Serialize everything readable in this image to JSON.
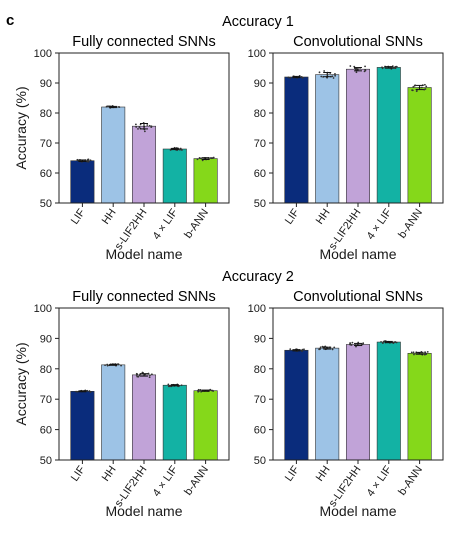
{
  "panel_label": "c",
  "colors": {
    "LIF": "#0a2c7c",
    "HH": "#9dc3e6",
    "s-LIF2HH": "#c1a3d8",
    "4 × LIF": "#13b2a4",
    "b-ANN": "#85d81a"
  },
  "groups": [
    {
      "title": "Accuracy 1",
      "charts": [
        {
          "title": "Fully connected SNNs",
          "xlabel": "Model name",
          "ylabel": "Accuracy (%)",
          "ylim": [
            50,
            100
          ],
          "yticks": [
            "50",
            "60",
            "70",
            "80",
            "90",
            "100"
          ],
          "categories": [
            "LIF",
            "HH",
            "s-LIF2HH",
            "4 × LIF",
            "b-ANN"
          ],
          "values": [
            64.1,
            82.0,
            75.6,
            68.0,
            64.8
          ],
          "spread": [
            0.5,
            0.4,
            1.8,
            0.4,
            0.6
          ]
        },
        {
          "title": "Convolutional SNNs",
          "xlabel": "Model name",
          "ylabel": "",
          "ylim": [
            50,
            100
          ],
          "yticks": [
            "50",
            "60",
            "70",
            "80",
            "90",
            "100"
          ],
          "categories": [
            "LIF",
            "HH",
            "s-LIF2HH",
            "4 × LIF",
            "b-ANN"
          ],
          "values": [
            92.0,
            92.8,
            94.6,
            95.2,
            88.5
          ],
          "spread": [
            0.4,
            1.4,
            1.1,
            0.5,
            1.4
          ]
        }
      ]
    },
    {
      "title": "Accuracy 2",
      "charts": [
        {
          "title": "Fully connected SNNs",
          "xlabel": "Model name",
          "ylabel": "Accuracy (%)",
          "ylim": [
            50,
            100
          ],
          "yticks": [
            "50",
            "60",
            "70",
            "80",
            "90",
            "100"
          ],
          "categories": [
            "LIF",
            "HH",
            "s-LIF2HH",
            "4 × LIF",
            "b-ANN"
          ],
          "values": [
            72.6,
            81.3,
            78.0,
            74.6,
            72.8
          ],
          "spread": [
            0.3,
            0.3,
            0.8,
            0.4,
            0.4
          ]
        },
        {
          "title": "Convolutional SNNs",
          "xlabel": "Model name",
          "ylabel": "",
          "ylim": [
            50,
            100
          ],
          "yticks": [
            "50",
            "60",
            "70",
            "80",
            "90",
            "100"
          ],
          "categories": [
            "LIF",
            "HH",
            "s-LIF2HH",
            "4 × LIF",
            "b-ANN"
          ],
          "values": [
            86.1,
            86.8,
            88.0,
            88.8,
            85.1
          ],
          "spread": [
            0.4,
            0.6,
            0.7,
            0.4,
            0.6
          ]
        }
      ]
    }
  ],
  "chart_data": [
    {
      "type": "bar",
      "title": "Fully connected SNNs",
      "xlabel": "Model name",
      "ylabel": "Accuracy (%)",
      "categories": [
        "LIF",
        "HH",
        "s-LIF2HH",
        "4 × LIF",
        "b-ANN"
      ],
      "values": [
        64.1,
        82.0,
        75.6,
        68.0,
        64.8
      ],
      "ylim": [
        50,
        100
      ]
    },
    {
      "type": "bar",
      "title": "Convolutional SNNs",
      "xlabel": "Model name",
      "ylabel": "",
      "categories": [
        "LIF",
        "HH",
        "s-LIF2HH",
        "4 × LIF",
        "b-ANN"
      ],
      "values": [
        92.0,
        92.8,
        94.6,
        95.2,
        88.5
      ],
      "ylim": [
        50,
        100
      ]
    },
    {
      "type": "bar",
      "title": "Fully connected SNNs",
      "xlabel": "Model name",
      "ylabel": "Accuracy (%)",
      "categories": [
        "LIF",
        "HH",
        "s-LIF2HH",
        "4 × LIF",
        "b-ANN"
      ],
      "values": [
        72.6,
        81.3,
        78.0,
        74.6,
        72.8
      ],
      "ylim": [
        50,
        100
      ]
    },
    {
      "type": "bar",
      "title": "Convolutional SNNs",
      "xlabel": "Model name",
      "ylabel": "",
      "categories": [
        "LIF",
        "HH",
        "s-LIF2HH",
        "4 × LIF",
        "b-ANN"
      ],
      "values": [
        86.1,
        86.8,
        88.0,
        88.8,
        85.1
      ],
      "ylim": [
        50,
        100
      ]
    }
  ]
}
